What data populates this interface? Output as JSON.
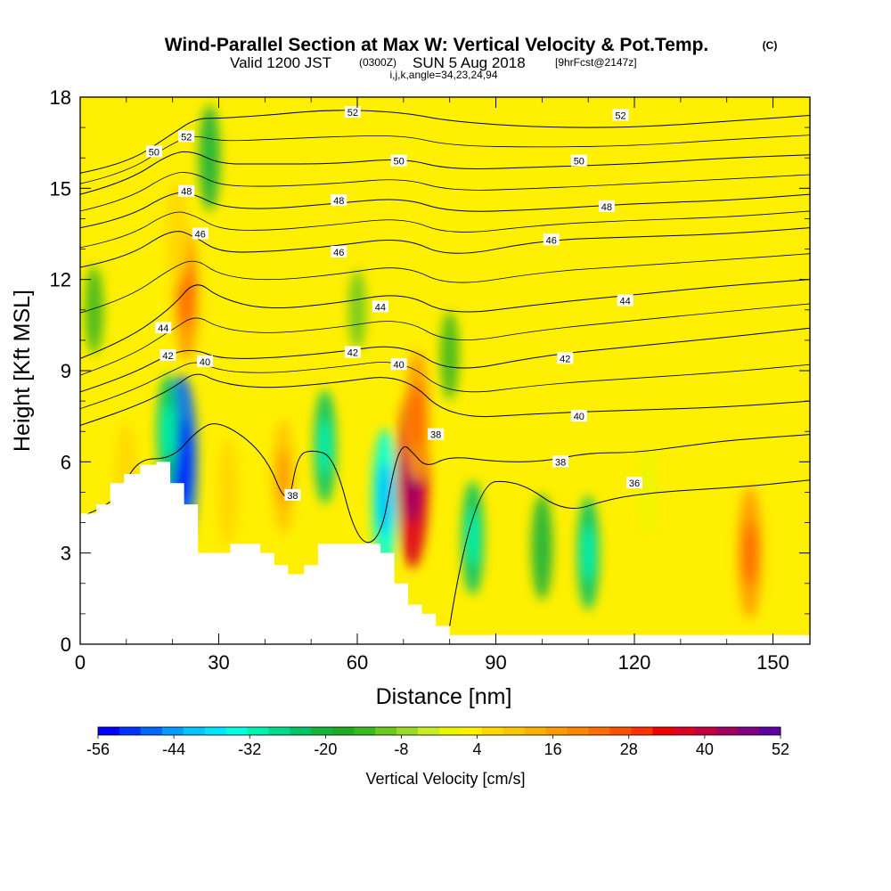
{
  "title": "Wind-Parallel Section at Max W: Vertical Velocity & Pot.Temp.",
  "title_mark": "(C)",
  "subtitle": {
    "valid": "Valid 1200 JST",
    "utc": "(0300Z)",
    "date": "SUN 5 Aug 2018",
    "forecast": "[9hrFcst@2147z]"
  },
  "params_line": "i,j,k,angle=34,23,24,94",
  "chart_data": {
    "type": "heatmap",
    "title": "Wind-Parallel Section at Max W: Vertical Velocity & Pot.Temp.",
    "xlabel": "Distance [nm]",
    "ylabel": "Height [Kft MSL]",
    "xlim": [
      0,
      158
    ],
    "ylim": [
      0,
      18
    ],
    "x_ticks": [
      0,
      30,
      60,
      90,
      120,
      150
    ],
    "y_ticks": [
      0,
      3,
      6,
      9,
      12,
      15,
      18
    ],
    "background_value_cm_s": 4,
    "terrain": {
      "x": [
        0,
        0,
        3.5,
        3.5,
        6.5,
        6.5,
        9.5,
        9.5,
        13,
        13,
        16.5,
        16.5,
        19.5,
        19.5,
        22.5,
        22.5,
        25.5,
        25.5,
        32.5,
        32.5,
        39,
        39,
        42,
        42,
        45,
        45,
        48.5,
        48.5,
        51.5,
        51.5,
        55,
        55,
        58,
        58,
        61.5,
        61.5,
        65,
        65,
        68,
        68,
        71,
        71,
        74,
        74,
        77,
        77,
        80,
        80,
        84,
        84,
        158,
        158
      ],
      "height": [
        0,
        4.3,
        4.3,
        4.6,
        4.6,
        5.3,
        5.3,
        5.6,
        5.6,
        5.9,
        5.9,
        6.0,
        6.0,
        5.3,
        5.3,
        4.6,
        4.6,
        3.0,
        3.0,
        3.3,
        3.3,
        3.0,
        3.0,
        2.6,
        2.6,
        2.3,
        2.3,
        2.6,
        2.6,
        3.3,
        3.3,
        3.3,
        3.3,
        3.3,
        3.3,
        3.3,
        3.3,
        3.0,
        3.0,
        2.0,
        2.0,
        1.3,
        1.3,
        1.0,
        1.0,
        0.6,
        0.6,
        0.3,
        0.3,
        0.3,
        0.3,
        0
      ]
    },
    "vertical_velocity_features": [
      {
        "x": 23,
        "z": 11.5,
        "value": 28
      },
      {
        "x": 21,
        "z": 13.5,
        "value": 16
      },
      {
        "x": 28,
        "z": 16.0,
        "value": -16
      },
      {
        "x": 22,
        "z": 6.0,
        "value": -48
      },
      {
        "x": 19,
        "z": 7.0,
        "value": -20
      },
      {
        "x": 10,
        "z": 5.5,
        "value": 16
      },
      {
        "x": 32,
        "z": 5.0,
        "value": 16
      },
      {
        "x": 44,
        "z": 5.5,
        "value": 20
      },
      {
        "x": 53,
        "z": 6.5,
        "value": -20
      },
      {
        "x": 66,
        "z": 4.8,
        "value": -32
      },
      {
        "x": 72,
        "z": 5.5,
        "value": 52
      },
      {
        "x": 73,
        "z": 7.5,
        "value": 28
      },
      {
        "x": 85,
        "z": 3.5,
        "value": -20
      },
      {
        "x": 100,
        "z": 3.2,
        "value": -16
      },
      {
        "x": 110,
        "z": 3.0,
        "value": -20
      },
      {
        "x": 145,
        "z": 3.0,
        "value": 28
      },
      {
        "x": 123,
        "z": 5.0,
        "value": 10
      },
      {
        "x": 80,
        "z": 9.5,
        "value": -8
      },
      {
        "x": 60,
        "z": 11.0,
        "value": -4
      },
      {
        "x": 3,
        "z": 11.0,
        "value": -8
      }
    ],
    "theta_contours": [
      {
        "value": 52,
        "x": [
          0,
          10,
          20,
          25,
          30,
          40,
          55,
          70,
          80,
          100,
          120,
          140,
          158
        ],
        "z": [
          15.5,
          15.8,
          16.8,
          17.3,
          17.3,
          17.4,
          17.6,
          17.5,
          17.2,
          17.0,
          17.0,
          17.2,
          17.4
        ]
      },
      {
        "value": 50,
        "x": [
          0,
          10,
          20,
          25,
          30,
          40,
          55,
          70,
          80,
          100,
          120,
          140,
          158
        ],
        "z": [
          14.8,
          15.2,
          16.2,
          16.2,
          15.8,
          15.8,
          15.8,
          16.0,
          15.6,
          15.7,
          15.8,
          16.0,
          16.1
        ]
      },
      {
        "value": 48,
        "x": [
          0,
          10,
          20,
          25,
          30,
          40,
          55,
          70,
          80,
          100,
          120,
          140,
          158
        ],
        "z": [
          13.7,
          14.0,
          14.9,
          14.8,
          14.4,
          14.3,
          14.5,
          14.7,
          14.2,
          14.3,
          14.5,
          14.6,
          14.8
        ]
      },
      {
        "value": 46,
        "x": [
          0,
          10,
          20,
          25,
          30,
          40,
          55,
          70,
          80,
          100,
          120,
          140,
          158
        ],
        "z": [
          12.4,
          12.7,
          13.7,
          13.4,
          12.9,
          12.9,
          13.1,
          13.4,
          12.7,
          13.3,
          13.4,
          13.5,
          13.7
        ]
      },
      {
        "value": 44,
        "x": [
          0,
          10,
          20,
          25,
          30,
          40,
          55,
          70,
          80,
          100,
          120,
          140,
          158
        ],
        "z": [
          9.4,
          10.0,
          11.1,
          12.0,
          11.4,
          11.0,
          11.2,
          11.6,
          10.8,
          11.2,
          11.5,
          11.8,
          12.0
        ]
      },
      {
        "value": 42,
        "x": [
          0,
          10,
          20,
          25,
          30,
          40,
          55,
          70,
          80,
          100,
          120,
          140,
          158
        ],
        "z": [
          8.3,
          8.8,
          9.6,
          9.7,
          9.4,
          9.4,
          9.6,
          9.9,
          8.9,
          9.5,
          9.8,
          10.1,
          10.4
        ]
      },
      {
        "value": 40,
        "x": [
          0,
          10,
          20,
          25,
          30,
          40,
          55,
          70,
          80,
          100,
          120,
          140,
          158
        ],
        "z": [
          7.2,
          7.7,
          8.4,
          9.0,
          8.6,
          8.4,
          8.6,
          8.9,
          7.4,
          7.6,
          7.7,
          7.8,
          8.0
        ]
      },
      {
        "value": 38,
        "x": [
          0,
          8,
          12,
          20,
          25,
          30,
          40,
          45,
          47,
          50,
          55,
          60,
          65,
          68,
          70,
          72,
          75,
          80,
          90,
          100,
          110,
          120,
          130,
          140,
          158
        ],
        "z": [
          4.2,
          4.6,
          6.1,
          6.1,
          7.0,
          7.4,
          6.3,
          4.4,
          6.2,
          6.4,
          6.2,
          3.3,
          3.4,
          5.9,
          6.6,
          6.3,
          5.8,
          6.2,
          6.0,
          6.0,
          6.3,
          6.3,
          6.5,
          6.7,
          6.9
        ]
      },
      {
        "value": 36,
        "x": [
          80,
          85,
          95,
          105,
          115,
          125,
          135,
          145,
          158
        ],
        "z": [
          0.6,
          5.3,
          5.4,
          4.3,
          4.8,
          5.0,
          5.1,
          5.2,
          5.4
        ]
      }
    ],
    "contour_labels": [
      {
        "text": "52",
        "x": 23,
        "z": 16.7
      },
      {
        "text": "52",
        "x": 59,
        "z": 17.5
      },
      {
        "text": "52",
        "x": 117,
        "z": 17.4
      },
      {
        "text": "50",
        "x": 16,
        "z": 16.2
      },
      {
        "text": "50",
        "x": 69,
        "z": 15.9
      },
      {
        "text": "50",
        "x": 108,
        "z": 15.9
      },
      {
        "text": "48",
        "x": 23,
        "z": 14.9
      },
      {
        "text": "48",
        "x": 56,
        "z": 14.6
      },
      {
        "text": "48",
        "x": 114,
        "z": 14.4
      },
      {
        "text": "46",
        "x": 26,
        "z": 13.5
      },
      {
        "text": "46",
        "x": 56,
        "z": 12.9
      },
      {
        "text": "46",
        "x": 102,
        "z": 13.3
      },
      {
        "text": "44",
        "x": 18,
        "z": 10.4
      },
      {
        "text": "44",
        "x": 65,
        "z": 11.1
      },
      {
        "text": "44",
        "x": 118,
        "z": 11.3
      },
      {
        "text": "42",
        "x": 19,
        "z": 9.5
      },
      {
        "text": "42",
        "x": 59,
        "z": 9.6
      },
      {
        "text": "42",
        "x": 105,
        "z": 9.4
      },
      {
        "text": "40",
        "x": 27,
        "z": 9.3
      },
      {
        "text": "40",
        "x": 69,
        "z": 9.2
      },
      {
        "text": "40",
        "x": 108,
        "z": 7.5
      },
      {
        "text": "38",
        "x": 46,
        "z": 4.9
      },
      {
        "text": "38",
        "x": 77,
        "z": 6.9
      },
      {
        "text": "38",
        "x": 104,
        "z": 6.0
      },
      {
        "text": "36",
        "x": 120,
        "z": 5.3
      }
    ]
  },
  "colorbar": {
    "title": "Vertical Velocity [cm/s]",
    "labels": [
      "-56",
      "-44",
      "-32",
      "-20",
      "-8",
      "4",
      "16",
      "28",
      "40",
      "52"
    ],
    "values": [
      -56,
      -44,
      -32,
      -20,
      -8,
      4,
      16,
      28,
      40,
      52
    ],
    "bin_width": 4,
    "colors": [
      "#0000ff",
      "#0033ff",
      "#0066ff",
      "#0099ff",
      "#00c3ff",
      "#00e4ff",
      "#00ffe0",
      "#00f0b0",
      "#00d88a",
      "#00c368",
      "#14b33a",
      "#1fab1f",
      "#3cb81f",
      "#6cc91f",
      "#9cdb24",
      "#c8ed24",
      "#ecf500",
      "#ffef00",
      "#ffd700",
      "#ffc400",
      "#ffb000",
      "#ff9b00",
      "#ff8400",
      "#ff6c00",
      "#ff5000",
      "#ff3000",
      "#ee0000",
      "#dd0020",
      "#c10040",
      "#a00060",
      "#7f0080",
      "#5e00a0"
    ]
  }
}
